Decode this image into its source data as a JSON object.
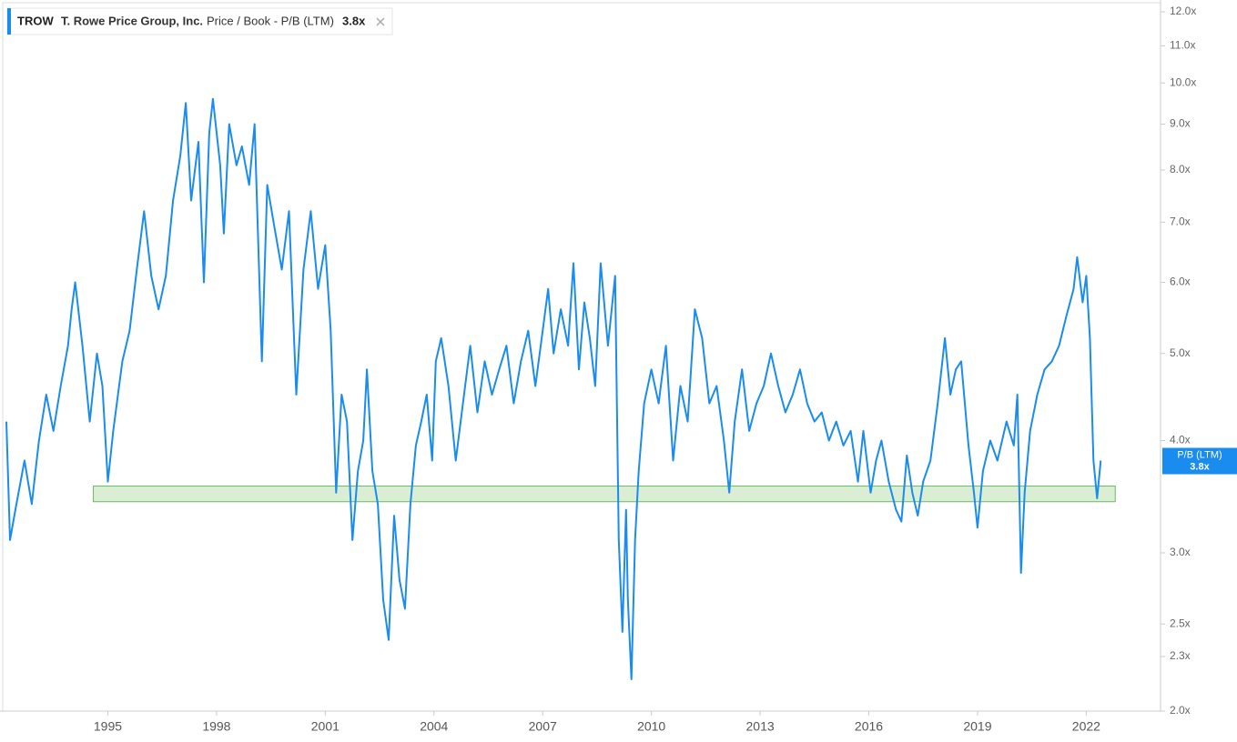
{
  "chart_data": {
    "type": "line",
    "ticker": "TROW",
    "company": "T. Rowe Price Group, Inc.",
    "log_scale": true,
    "xlim": [
      1992.15,
      2024.05
    ],
    "xticks": [
      1995,
      1998,
      2001,
      2004,
      2007,
      2010,
      2013,
      2016,
      2019,
      2022
    ],
    "ylim": [
      2,
      12
    ],
    "yticks": [
      {
        "value": 2,
        "label": "2.0x"
      },
      {
        "value": 2.3,
        "label": "2.3x"
      },
      {
        "value": 2.5,
        "label": "2.5x"
      },
      {
        "value": 3,
        "label": "3.0x"
      },
      {
        "value": 4,
        "label": "4.0x"
      },
      {
        "value": 5,
        "label": "5.0x"
      },
      {
        "value": 6,
        "label": "6.0x"
      },
      {
        "value": 7,
        "label": "7.0x"
      },
      {
        "value": 8,
        "label": "8.0x"
      },
      {
        "value": 9,
        "label": "9.0x"
      },
      {
        "value": 10,
        "label": "10.0x"
      },
      {
        "value": 11,
        "label": "11.0x"
      },
      {
        "value": 12,
        "label": "12.0x"
      }
    ],
    "current": {
      "name": "P/B (LTM)",
      "value": 3.8,
      "label": "3.8x",
      "color": "#1a8cf0"
    },
    "band": {
      "x": [
        1994.6,
        2022.8
      ],
      "y": [
        3.42,
        3.56
      ],
      "color": "#d9eed3",
      "edge": "#6fb866"
    },
    "x": [
      1992.2,
      1992.3,
      1992.45,
      1992.7,
      1992.9,
      1993.1,
      1993.3,
      1993.5,
      1993.7,
      1993.9,
      1994.0,
      1994.1,
      1994.3,
      1994.5,
      1994.7,
      1994.85,
      1995.0,
      1995.15,
      1995.4,
      1995.6,
      1995.8,
      1996.0,
      1996.2,
      1996.4,
      1996.6,
      1996.8,
      1997.0,
      1997.15,
      1997.3,
      1997.5,
      1997.65,
      1997.8,
      1997.9,
      1998.1,
      1998.2,
      1998.35,
      1998.55,
      1998.7,
      1998.9,
      1999.05,
      1999.25,
      1999.4,
      1999.6,
      1999.8,
      2000.0,
      2000.2,
      2000.4,
      2000.6,
      2000.8,
      2001.0,
      2001.15,
      2001.3,
      2001.45,
      2001.6,
      2001.75,
      2001.9,
      2002.05,
      2002.15,
      2002.3,
      2002.45,
      2002.6,
      2002.75,
      2002.9,
      2003.05,
      2003.2,
      2003.35,
      2003.5,
      2003.65,
      2003.8,
      2003.95,
      2004.05,
      2004.2,
      2004.4,
      2004.6,
      2004.8,
      2005.0,
      2005.2,
      2005.4,
      2005.6,
      2005.8,
      2006.0,
      2006.2,
      2006.4,
      2006.6,
      2006.8,
      2007.0,
      2007.15,
      2007.3,
      2007.5,
      2007.7,
      2007.85,
      2008.0,
      2008.15,
      2008.3,
      2008.45,
      2008.6,
      2008.8,
      2009.0,
      2009.1,
      2009.2,
      2009.3,
      2009.35,
      2009.45,
      2009.55,
      2009.65,
      2009.8,
      2010.0,
      2010.2,
      2010.4,
      2010.6,
      2010.8,
      2011.0,
      2011.2,
      2011.4,
      2011.6,
      2011.8,
      2012.0,
      2012.15,
      2012.3,
      2012.5,
      2012.7,
      2012.9,
      2013.1,
      2013.3,
      2013.5,
      2013.7,
      2013.9,
      2014.1,
      2014.3,
      2014.5,
      2014.7,
      2014.9,
      2015.1,
      2015.3,
      2015.5,
      2015.7,
      2015.85,
      2016.05,
      2016.2,
      2016.35,
      2016.55,
      2016.75,
      2016.9,
      2017.05,
      2017.2,
      2017.35,
      2017.5,
      2017.7,
      2017.9,
      2018.1,
      2018.25,
      2018.4,
      2018.55,
      2018.75,
      2018.9,
      2019.0,
      2019.15,
      2019.35,
      2019.55,
      2019.8,
      2020.0,
      2020.1,
      2020.2,
      2020.3,
      2020.45,
      2020.65,
      2020.85,
      2021.05,
      2021.25,
      2021.45,
      2021.65,
      2021.75,
      2021.9,
      2022.0,
      2022.1,
      2022.2,
      2022.3,
      2022.4
    ],
    "series": [
      {
        "name": "Price / Book - P/B (LTM)",
        "color": "#1a8cf0",
        "values": [
          4.2,
          3.1,
          3.35,
          3.8,
          3.4,
          4.0,
          4.5,
          4.1,
          4.6,
          5.1,
          5.6,
          6.0,
          5.1,
          4.2,
          5.0,
          4.6,
          3.6,
          4.1,
          4.9,
          5.3,
          6.2,
          7.2,
          6.1,
          5.6,
          6.1,
          7.4,
          8.3,
          9.5,
          7.4,
          8.6,
          6.0,
          8.8,
          9.6,
          8.1,
          6.8,
          9.0,
          8.1,
          8.5,
          7.7,
          9.0,
          4.9,
          7.7,
          6.9,
          6.2,
          7.2,
          4.5,
          6.2,
          7.2,
          5.9,
          6.6,
          5.3,
          3.5,
          4.5,
          4.2,
          3.1,
          3.7,
          4.0,
          4.8,
          3.7,
          3.4,
          2.66,
          2.4,
          3.3,
          2.8,
          2.6,
          3.4,
          3.95,
          4.2,
          4.5,
          3.8,
          4.9,
          5.2,
          4.6,
          3.8,
          4.4,
          5.1,
          4.3,
          4.9,
          4.5,
          4.8,
          5.1,
          4.4,
          4.9,
          5.3,
          4.6,
          5.3,
          5.9,
          5.0,
          5.6,
          5.1,
          6.3,
          4.8,
          5.7,
          5.2,
          4.6,
          6.3,
          5.1,
          6.1,
          3.1,
          2.45,
          3.35,
          2.66,
          2.17,
          3.1,
          3.7,
          4.4,
          4.8,
          4.4,
          5.1,
          3.8,
          4.6,
          4.2,
          5.6,
          5.2,
          4.4,
          4.6,
          4.0,
          3.5,
          4.2,
          4.8,
          4.1,
          4.4,
          4.6,
          5.0,
          4.6,
          4.3,
          4.5,
          4.8,
          4.4,
          4.2,
          4.3,
          4.0,
          4.2,
          3.95,
          4.1,
          3.6,
          4.1,
          3.5,
          3.8,
          4.0,
          3.6,
          3.35,
          3.25,
          3.85,
          3.5,
          3.3,
          3.6,
          3.8,
          4.4,
          5.2,
          4.5,
          4.8,
          4.9,
          3.95,
          3.5,
          3.2,
          3.7,
          4.0,
          3.8,
          4.2,
          3.95,
          4.5,
          2.85,
          3.5,
          4.1,
          4.5,
          4.8,
          4.9,
          5.1,
          5.5,
          5.9,
          6.4,
          5.7,
          6.1,
          5.2,
          3.8,
          3.45,
          3.8
        ]
      }
    ]
  }
}
